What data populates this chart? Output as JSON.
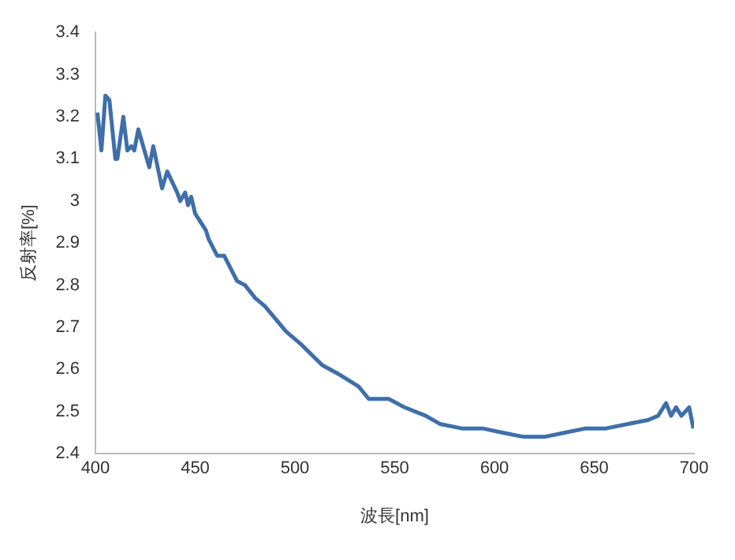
{
  "chart_data": {
    "type": "line",
    "xlabel": "波長[nm]",
    "ylabel": "反射率[%]",
    "x": [
      401,
      403,
      405,
      407,
      410,
      411,
      414,
      416,
      418,
      419.5,
      421.5,
      427,
      429,
      433.4,
      436,
      441,
      442.5,
      445,
      446.4,
      448,
      450,
      455.4,
      456.7,
      461,
      464.5,
      471,
      475,
      480,
      485,
      495.6,
      503,
      513.7,
      521.5,
      531.8,
      537,
      547,
      555,
      565.5,
      573,
      583.6,
      594,
      604,
      614.7,
      625,
      635.4,
      645.8,
      656,
      666.5,
      677,
      682,
      686,
      688.5,
      691,
      693.7,
      697.6,
      699.7
    ],
    "series": [
      {
        "color": "#3f6faa",
        "values": [
          3.21,
          3.12,
          3.25,
          3.24,
          3.1,
          3.1,
          3.2,
          3.12,
          3.13,
          3.12,
          3.17,
          3.08,
          3.13,
          3.03,
          3.07,
          3.02,
          3.0,
          3.02,
          2.99,
          3.01,
          2.97,
          2.93,
          2.91,
          2.87,
          2.87,
          2.81,
          2.8,
          2.77,
          2.75,
          2.69,
          2.66,
          2.61,
          2.59,
          2.56,
          2.53,
          2.53,
          2.51,
          2.49,
          2.47,
          2.46,
          2.46,
          2.45,
          2.44,
          2.44,
          2.45,
          2.46,
          2.46,
          2.47,
          2.48,
          2.49,
          2.52,
          2.49,
          2.51,
          2.49,
          2.51,
          2.46
        ]
      }
    ],
    "xlim": [
      400,
      700
    ],
    "xticks": [
      400,
      450,
      500,
      550,
      600,
      650,
      700
    ],
    "ylim": [
      2.4,
      3.4
    ],
    "yticks": [
      2.4,
      2.5,
      2.6,
      2.7,
      2.8,
      2.9,
      3,
      3.1,
      3.2,
      3.3,
      3.4
    ],
    "grid": false,
    "legend": false,
    "marker": "none",
    "line_style": "solid"
  }
}
